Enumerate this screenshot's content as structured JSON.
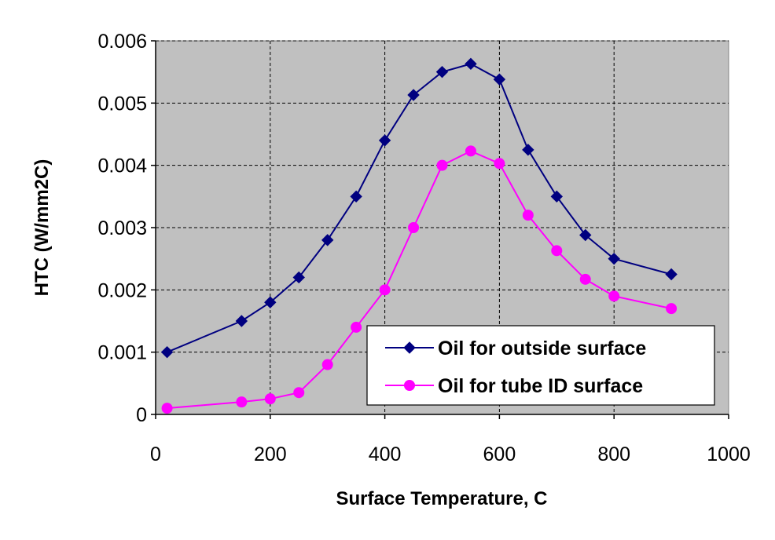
{
  "chart_data": {
    "type": "line",
    "title": "",
    "xlabel": "Surface Temperature, C",
    "ylabel": "HTC (W/mm2C)",
    "xlim": [
      0,
      1000
    ],
    "ylim": [
      0,
      0.006
    ],
    "xticks": [
      0,
      200,
      400,
      600,
      800,
      1000
    ],
    "xtick_labels": [
      "0",
      "200",
      "400",
      "600",
      "800",
      "1000"
    ],
    "yticks": [
      0,
      0.001,
      0.002,
      0.003,
      0.004,
      0.005,
      0.006
    ],
    "ytick_labels": [
      "0",
      "0.001",
      "0.002",
      "0.003",
      "0.004",
      "0.005",
      "0.006"
    ],
    "grid": true,
    "grid_style": "dashed",
    "plot_background": "#c0c0c0",
    "legend_position": "bottom-right",
    "series": [
      {
        "name": "Oil for outside surface",
        "color": "#000080",
        "marker": "diamond",
        "x": [
          20,
          150,
          200,
          250,
          300,
          350,
          400,
          450,
          500,
          550,
          600,
          650,
          700,
          750,
          800,
          900
        ],
        "y": [
          0.001,
          0.0015,
          0.0018,
          0.0022,
          0.0028,
          0.0035,
          0.0044,
          0.00513,
          0.0055,
          0.00563,
          0.00538,
          0.00425,
          0.0035,
          0.00288,
          0.0025,
          0.00225
        ]
      },
      {
        "name": "Oil for tube ID surface",
        "color": "#ff00ff",
        "marker": "circle",
        "x": [
          20,
          150,
          200,
          250,
          300,
          350,
          400,
          450,
          500,
          550,
          600,
          650,
          700,
          750,
          800,
          900
        ],
        "y": [
          0.0001,
          0.0002,
          0.00025,
          0.00035,
          0.0008,
          0.0014,
          0.002,
          0.003,
          0.004,
          0.00423,
          0.00403,
          0.0032,
          0.00263,
          0.00217,
          0.0019,
          0.0017
        ]
      }
    ]
  }
}
